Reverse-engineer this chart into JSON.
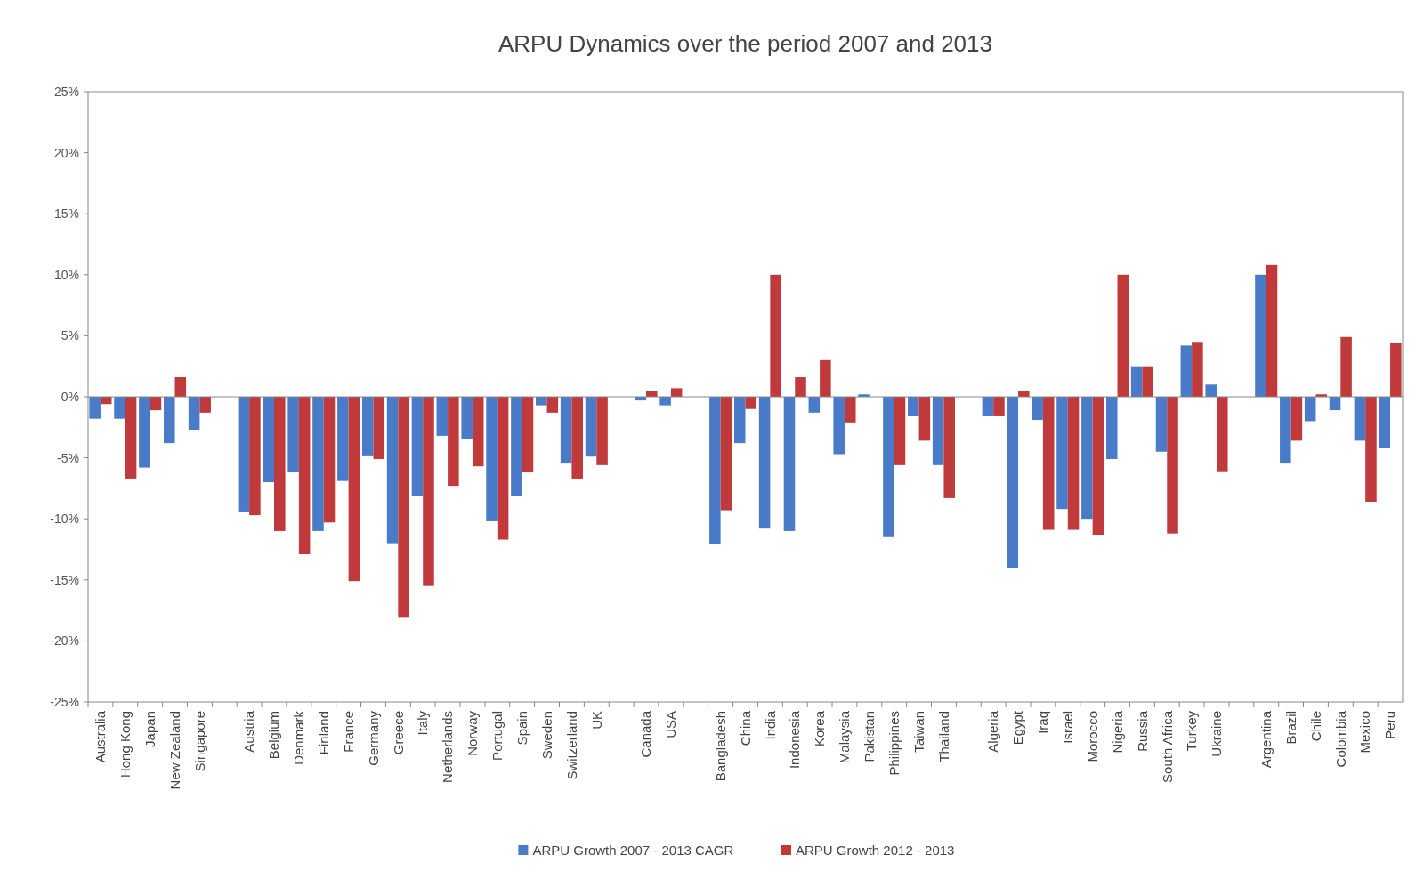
{
  "chart_data": {
    "type": "bar",
    "title": "ARPU Dynamics over the period 2007 and 2013",
    "categories": [
      "Australia",
      "Hong Kong",
      "Japan",
      "New Zealand",
      "Singapore",
      null,
      "Austria",
      "Belgium",
      "Denmark",
      "Finland",
      "France",
      "Germany",
      "Greece",
      "Italy",
      "Netherlands",
      "Norway",
      "Portugal",
      "Spain",
      "Sweden",
      "Switzerland",
      "UK",
      null,
      "Canada",
      "USA",
      null,
      "Bangladesh",
      "China",
      "India",
      "Indonesia",
      "Korea",
      "Malaysia",
      "Pakistan",
      "Philippines",
      "Taiwan",
      "Thailand",
      null,
      "Algeria",
      "Egypt",
      "Iraq",
      "Israel",
      "Morocco",
      "Nigeria",
      "Russia",
      "South Africa",
      "Turkey",
      "Ukraine",
      null,
      "Argentina",
      "Brazil",
      "Chile",
      "Colombia",
      "Mexico",
      "Peru"
    ],
    "series": [
      {
        "name": "ARPU Growth 2007 - 2013 CAGR",
        "color": "#4a7bc8",
        "values": [
          -1.8,
          -1.8,
          -5.8,
          -3.8,
          -2.7,
          null,
          -9.4,
          -7.0,
          -6.2,
          -11.0,
          -6.9,
          -4.8,
          -12.0,
          -8.1,
          -3.2,
          -3.5,
          -10.2,
          -8.1,
          -0.7,
          -5.4,
          -4.9,
          null,
          -0.3,
          -0.7,
          null,
          -12.1,
          -3.8,
          -10.8,
          -11.0,
          -1.3,
          -4.7,
          0.2,
          -11.5,
          -1.6,
          -5.6,
          null,
          -1.6,
          -14.0,
          -1.9,
          -9.2,
          -10.0,
          -5.1,
          2.5,
          -4.5,
          4.2,
          1.0,
          null,
          10.0,
          -5.4,
          -2.0,
          -1.1,
          -3.6,
          -4.2
        ]
      },
      {
        "name": "ARPU Growth 2012 - 2013",
        "color": "#c0393b",
        "values": [
          -0.6,
          -6.7,
          -1.1,
          1.6,
          -1.3,
          null,
          -9.7,
          -11.0,
          -12.9,
          -10.3,
          -15.1,
          -5.1,
          -18.1,
          -15.5,
          -7.3,
          -5.7,
          -11.7,
          -6.2,
          -1.3,
          -6.7,
          -5.6,
          null,
          0.5,
          0.7,
          null,
          -9.3,
          -1.0,
          10.0,
          1.6,
          3.0,
          -2.1,
          0,
          -5.6,
          -3.6,
          -8.3,
          null,
          -1.6,
          0.5,
          -10.9,
          -10.9,
          -11.3,
          10.0,
          2.5,
          -11.2,
          4.5,
          -6.1,
          null,
          10.8,
          -3.6,
          0.2,
          4.9,
          -8.6,
          4.4
        ]
      }
    ],
    "ylim": [
      -25,
      25
    ],
    "yticks": [
      {
        "value": -25,
        "label": "-25%"
      },
      {
        "value": -20,
        "label": "-20%"
      },
      {
        "value": -15,
        "label": "-15%"
      },
      {
        "value": -10,
        "label": "-10%"
      },
      {
        "value": -5,
        "label": "-5%"
      },
      {
        "value": 0,
        "label": "0%"
      },
      {
        "value": 5,
        "label": "5%"
      },
      {
        "value": 10,
        "label": "10%"
      },
      {
        "value": 15,
        "label": "15%"
      },
      {
        "value": 20,
        "label": "20%"
      },
      {
        "value": 25,
        "label": "25%"
      }
    ],
    "legend": "bottom"
  }
}
